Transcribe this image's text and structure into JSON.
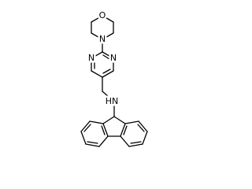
{
  "atoms": {
    "morpholine_oxygen": "O",
    "morpholine_nitrogen": "N",
    "pyrimidine_nitrogen_left": "N",
    "pyrimidine_nitrogen_right": "N",
    "amine": "HN"
  }
}
